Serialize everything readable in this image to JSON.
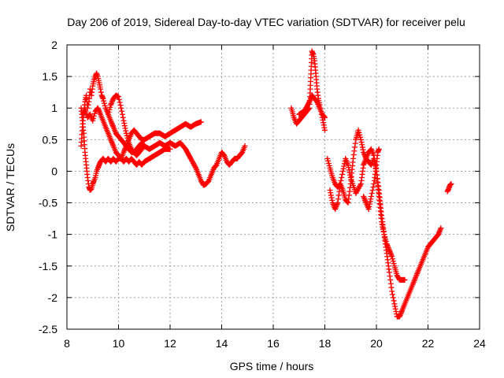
{
  "chart_data": {
    "type": "scatter",
    "title": "Day 206 of 2019, Sidereal Day-to-day VTEC variation (SDTVAR) for receiver pelu",
    "xlabel": "GPS time / hours",
    "ylabel": "SDTVAR / TECUs",
    "xlim": [
      8,
      24
    ],
    "ylim": [
      -2.5,
      2
    ],
    "xticks": [
      8,
      10,
      12,
      14,
      16,
      18,
      20,
      22,
      24
    ],
    "yticks": [
      -2.5,
      -2,
      -1.5,
      -1,
      -0.5,
      0,
      0.5,
      1,
      1.5,
      2
    ],
    "ytick_labels": [
      "-2.5",
      "-2",
      "-1.5",
      "-1",
      "-0.5",
      "0",
      "0.5",
      "1",
      "1.5",
      "2"
    ],
    "grid": true,
    "marker": "+",
    "color": "#ff0000",
    "series": [
      {
        "x": [
          8.55,
          8.6,
          8.65,
          8.7,
          8.75,
          8.8,
          8.85,
          8.9,
          8.95,
          9.0,
          9.05,
          9.1,
          9.15,
          9.2,
          9.25,
          9.3,
          9.35,
          9.4,
          9.5,
          9.6,
          9.7,
          9.8,
          9.9,
          10.0,
          10.1,
          10.2,
          10.3,
          10.4,
          10.5,
          10.6,
          10.7,
          10.8,
          10.9,
          11.0
        ],
        "y": [
          0.4,
          0.7,
          0.9,
          1.1,
          1.2,
          1.0,
          1.1,
          1.3,
          1.2,
          1.35,
          1.45,
          1.5,
          1.55,
          1.5,
          1.4,
          1.3,
          1.2,
          1.15,
          1.0,
          0.9,
          0.8,
          0.7,
          0.6,
          0.55,
          0.5,
          0.45,
          0.4,
          0.35,
          0.3,
          0.3,
          0.25,
          0.3,
          0.35,
          0.4
        ]
      },
      {
        "x": [
          8.55,
          8.6,
          8.65,
          8.7,
          8.75,
          8.8,
          8.85,
          8.9,
          8.95,
          9.0,
          9.05,
          9.1,
          9.15,
          9.2,
          9.25,
          9.3,
          9.4,
          9.5,
          9.6,
          9.7,
          9.8,
          9.9,
          10.0,
          10.1,
          10.2,
          10.3,
          10.4,
          10.5,
          10.6,
          10.7,
          10.8,
          10.9,
          11.0,
          11.2,
          11.4,
          11.6,
          11.8,
          12.0
        ],
        "y": [
          1.0,
          0.8,
          0.6,
          0.3,
          0.1,
          -0.1,
          -0.25,
          -0.3,
          -0.28,
          -0.2,
          -0.15,
          -0.1,
          0.0,
          0.05,
          0.1,
          0.15,
          0.2,
          0.15,
          0.2,
          0.15,
          0.2,
          0.15,
          0.2,
          0.2,
          0.15,
          0.2,
          0.15,
          0.2,
          0.15,
          0.1,
          0.15,
          0.1,
          0.15,
          0.2,
          0.25,
          0.3,
          0.35,
          0.35
        ]
      },
      {
        "x": [
          8.6,
          8.7,
          8.8,
          8.9,
          9.0,
          9.1,
          9.2,
          9.3,
          9.4,
          9.5,
          9.6,
          9.7,
          9.8,
          9.9,
          10.0,
          10.1,
          10.2,
          10.3,
          10.4,
          10.5,
          10.6,
          10.7,
          10.8,
          10.9,
          11.0,
          11.2,
          11.4,
          11.6,
          11.8,
          12.0,
          12.2,
          12.4,
          12.6,
          12.8,
          13.0,
          13.2
        ],
        "y": [
          0.9,
          1.0,
          0.85,
          0.9,
          0.8,
          0.95,
          1.0,
          0.9,
          0.8,
          0.7,
          0.6,
          0.5,
          0.4,
          0.3,
          0.25,
          0.2,
          0.3,
          0.4,
          0.5,
          0.6,
          0.65,
          0.6,
          0.55,
          0.5,
          0.5,
          0.55,
          0.6,
          0.6,
          0.55,
          0.6,
          0.65,
          0.7,
          0.75,
          0.7,
          0.75,
          0.78
        ]
      },
      {
        "x": [
          9.6,
          9.7,
          9.8,
          9.9,
          10.0,
          10.1,
          10.2,
          10.3,
          10.4,
          10.5,
          10.6,
          10.7,
          10.8,
          10.9,
          11.0,
          11.2,
          11.4,
          11.6,
          11.8,
          12.0,
          12.2,
          12.4,
          12.6,
          12.8,
          13.0,
          13.1,
          13.2,
          13.3,
          13.4,
          13.5,
          13.6,
          13.7,
          13.8,
          13.9,
          14.0,
          14.1,
          14.2,
          14.3,
          14.4,
          14.5,
          14.6,
          14.7,
          14.8,
          14.9
        ],
        "y": [
          0.9,
          1.05,
          1.15,
          1.2,
          1.18,
          1.0,
          0.8,
          0.6,
          0.45,
          0.35,
          0.3,
          0.35,
          0.4,
          0.45,
          0.4,
          0.35,
          0.4,
          0.45,
          0.4,
          0.45,
          0.4,
          0.45,
          0.35,
          0.2,
          0.05,
          -0.05,
          -0.15,
          -0.22,
          -0.2,
          -0.15,
          -0.05,
          0.05,
          0.1,
          0.2,
          0.3,
          0.25,
          0.15,
          0.1,
          0.15,
          0.2,
          0.2,
          0.25,
          0.3,
          0.4
        ]
      },
      {
        "x": [
          16.7,
          16.8,
          16.9,
          17.0,
          17.1,
          17.2,
          17.3,
          17.4,
          17.5,
          17.55,
          17.6,
          17.65,
          17.7,
          17.75,
          17.8,
          17.9,
          18.0
        ],
        "y": [
          1.0,
          0.85,
          0.75,
          0.8,
          0.85,
          0.9,
          0.95,
          1.0,
          1.9,
          1.85,
          1.75,
          1.55,
          1.3,
          1.15,
          1.05,
          0.85,
          0.65
        ]
      },
      {
        "x": [
          17.0,
          17.2,
          17.4,
          17.5,
          17.6,
          17.7,
          17.8,
          17.9,
          18.0
        ],
        "y": [
          0.9,
          0.95,
          1.1,
          1.2,
          1.15,
          1.1,
          1.0,
          0.9,
          0.85
        ]
      },
      {
        "x": [
          18.1,
          18.2,
          18.3,
          18.4,
          18.5,
          18.6,
          18.7,
          18.8,
          18.9,
          19.0,
          19.1,
          19.2,
          19.3,
          19.4,
          19.5,
          19.6,
          19.7,
          19.8,
          19.9,
          20.0,
          20.1,
          20.2,
          20.3,
          20.4,
          20.5,
          20.6,
          20.7,
          20.8,
          20.9,
          21.0,
          21.2,
          21.4,
          21.6,
          21.8,
          22.0,
          22.2,
          22.4,
          22.5
        ],
        "y": [
          0.2,
          0.05,
          -0.1,
          -0.2,
          -0.25,
          -0.2,
          -0.3,
          -0.45,
          -0.5,
          -0.2,
          0.2,
          0.5,
          0.65,
          0.5,
          0.3,
          0.2,
          0.15,
          0.1,
          0.2,
          0.0,
          -0.3,
          -0.7,
          -1.0,
          -1.3,
          -1.6,
          -1.9,
          -2.1,
          -2.3,
          -2.3,
          -2.2,
          -2.0,
          -1.8,
          -1.6,
          -1.4,
          -1.2,
          -1.1,
          -1.0,
          -0.9
        ]
      },
      {
        "x": [
          18.2,
          18.3,
          18.4,
          18.5,
          18.6,
          18.7,
          18.8,
          18.9,
          19.0,
          19.2,
          19.4,
          19.5,
          19.6,
          19.7,
          19.8,
          19.9,
          20.0,
          20.1,
          20.2,
          20.3,
          20.4,
          20.5,
          20.6,
          20.7,
          20.8,
          20.9,
          21.0,
          21.1
        ],
        "y": [
          -0.3,
          -0.5,
          -0.6,
          -0.5,
          -0.2,
          0.0,
          0.2,
          0.1,
          -0.1,
          -0.35,
          -0.2,
          0.1,
          0.2,
          0.3,
          0.35,
          0.25,
          0.0,
          -0.4,
          -0.8,
          -1.0,
          -1.15,
          -1.25,
          -1.35,
          -1.5,
          -1.65,
          -1.72,
          -1.72,
          -1.72
        ]
      },
      {
        "x": [
          19.5,
          19.6,
          19.7,
          19.8,
          19.9,
          20.0,
          20.05,
          20.1
        ],
        "y": [
          -0.4,
          -0.5,
          -0.6,
          -0.4,
          -0.2,
          0.1,
          0.3,
          0.35
        ]
      },
      {
        "x": [
          22.75,
          22.8,
          22.85,
          22.9
        ],
        "y": [
          -0.32,
          -0.28,
          -0.22,
          -0.2
        ]
      }
    ]
  }
}
